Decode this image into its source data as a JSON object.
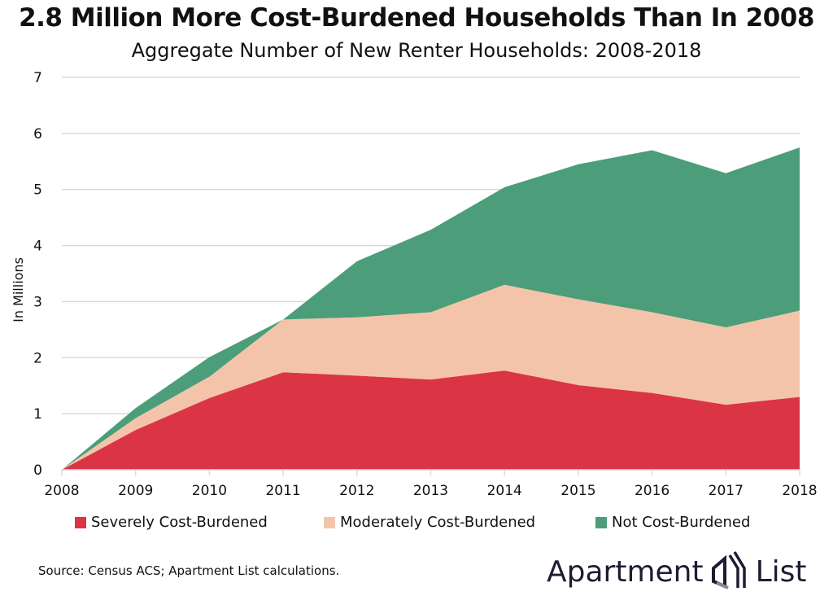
{
  "title": "2.8 Million More Cost-Burdened Households Than In 2008",
  "subtitle": "Aggregate Number of New Renter Households: 2008-2018",
  "source": "Source: Census ACS; Apartment List calculations.",
  "logo": {
    "left": "Apartment",
    "right": "List",
    "icon": "building-logo-icon"
  },
  "chart_data": {
    "type": "area",
    "stacked": true,
    "x": [
      2008,
      2009,
      2010,
      2011,
      2012,
      2013,
      2014,
      2015,
      2016,
      2017,
      2018
    ],
    "x_tick_labels": [
      "2008",
      "2009",
      "2010",
      "2011",
      "2012",
      "2013",
      "2014",
      "2015",
      "2016",
      "2017",
      "2018"
    ],
    "y_ticks": [
      "0",
      "1",
      "2",
      "3",
      "4",
      "5",
      "6",
      "7"
    ],
    "ylim": [
      0,
      7
    ],
    "ylabel": "In Millions",
    "grid": "horizontal",
    "legend": "bottom",
    "series": [
      {
        "name": "Severely Cost-Burdened",
        "color": "#db3545",
        "values": [
          0,
          0.71,
          1.28,
          1.74,
          1.68,
          1.61,
          1.77,
          1.51,
          1.37,
          1.16,
          1.3
        ]
      },
      {
        "name": "Moderately Cost-Burdened",
        "color": "#f4c4aa",
        "values": [
          0,
          0.21,
          0.38,
          0.94,
          1.04,
          1.2,
          1.53,
          1.53,
          1.44,
          1.38,
          1.54
        ]
      },
      {
        "name": "Not Cost-Burdened",
        "color": "#4b9e79",
        "values": [
          0,
          0.18,
          0.35,
          0,
          1.0,
          1.47,
          1.74,
          2.41,
          2.89,
          2.75,
          2.91
        ]
      }
    ]
  }
}
